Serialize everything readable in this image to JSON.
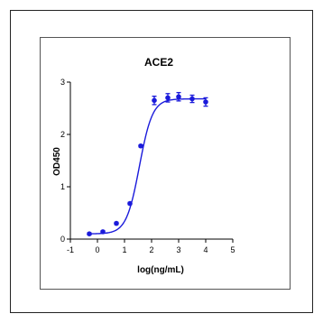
{
  "chart_data": {
    "type": "scatter",
    "title": "ACE2",
    "xlabel": "log(ng/mL)",
    "ylabel": "OD450",
    "xlim": [
      -1,
      5
    ],
    "ylim": [
      0,
      3
    ],
    "xticks": [
      "-1",
      "0",
      "1",
      "2",
      "3",
      "4",
      "5"
    ],
    "yticks": [
      "0",
      "1",
      "2",
      "3"
    ],
    "grid": false,
    "colors": {
      "series": "#1a1adb",
      "axes": "#000000"
    },
    "series": [
      {
        "points": [
          {
            "x": -0.3,
            "y": 0.1,
            "yerr": 0.02
          },
          {
            "x": 0.2,
            "y": 0.14,
            "yerr": 0.02
          },
          {
            "x": 0.7,
            "y": 0.3,
            "yerr": 0.02
          },
          {
            "x": 1.2,
            "y": 0.68,
            "yerr": 0.02
          },
          {
            "x": 1.6,
            "y": 1.78,
            "yerr": 0.02
          },
          {
            "x": 2.1,
            "y": 2.65,
            "yerr": 0.08
          },
          {
            "x": 2.6,
            "y": 2.7,
            "yerr": 0.08
          },
          {
            "x": 3.0,
            "y": 2.72,
            "yerr": 0.08
          },
          {
            "x": 3.5,
            "y": 2.68,
            "yerr": 0.07
          },
          {
            "x": 4.0,
            "y": 2.62,
            "yerr": 0.08
          }
        ],
        "fit": {
          "model": "4PL",
          "bottom": 0.1,
          "top": 2.68,
          "logEC50": 1.55,
          "hill": 1.8
        }
      }
    ]
  }
}
